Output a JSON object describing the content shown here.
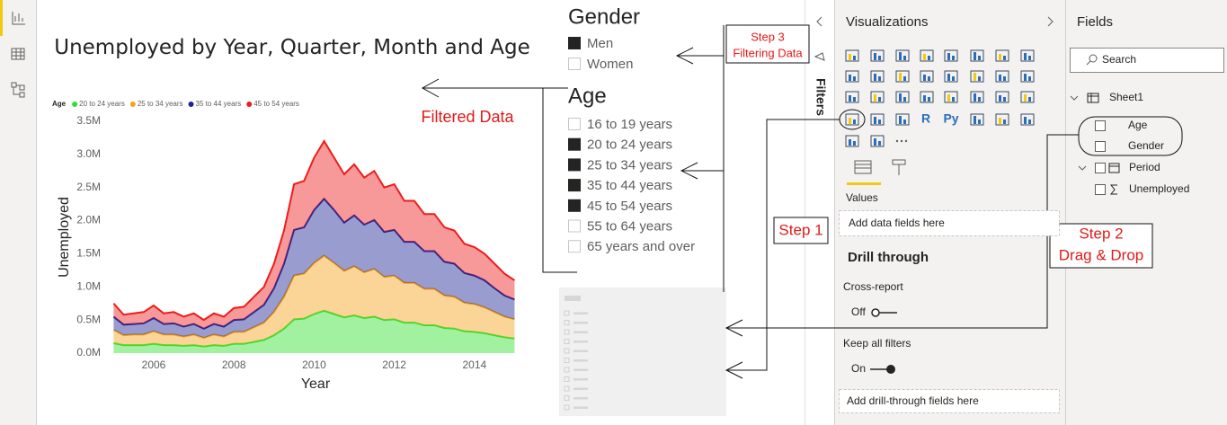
{
  "chart_data": {
    "type": "area",
    "stacked": true,
    "title": "Unemployed by Year, Quarter, Month and Age",
    "legend_title": "Age",
    "x_label": "Year",
    "y_label": "Unemployed",
    "x": [
      2005,
      2005.25,
      2005.5,
      2005.75,
      2006,
      2006.25,
      2006.5,
      2006.75,
      2007,
      2007.25,
      2007.5,
      2007.75,
      2008,
      2008.25,
      2008.5,
      2008.75,
      2009,
      2009.25,
      2009.5,
      2009.75,
      2010,
      2010.25,
      2010.5,
      2010.75,
      2011,
      2011.25,
      2011.5,
      2011.75,
      2012,
      2012.25,
      2012.5,
      2012.75,
      2013,
      2013.25,
      2013.5,
      2013.75,
      2014,
      2014.25,
      2014.5,
      2014.75,
      2015
    ],
    "series": [
      {
        "name": "20 to 24 years",
        "color": "#2ee02e",
        "values": [
          150000,
          120000,
          120000,
          120000,
          140000,
          120000,
          120000,
          110000,
          120000,
          100000,
          120000,
          110000,
          140000,
          140000,
          170000,
          200000,
          270000,
          370000,
          510000,
          520000,
          590000,
          640000,
          590000,
          540000,
          570000,
          530000,
          550000,
          500000,
          510000,
          460000,
          460000,
          420000,
          420000,
          380000,
          370000,
          330000,
          320000,
          300000,
          270000,
          240000,
          220000
        ]
      },
      {
        "name": "25 to 34 years",
        "color": "#f7a21b",
        "values": [
          200000,
          150000,
          160000,
          160000,
          190000,
          160000,
          160000,
          140000,
          160000,
          130000,
          160000,
          140000,
          180000,
          180000,
          220000,
          260000,
          350000,
          480000,
          660000,
          680000,
          770000,
          830000,
          770000,
          700000,
          740000,
          690000,
          720000,
          650000,
          660000,
          600000,
          600000,
          550000,
          550000,
          490000,
          480000,
          430000,
          420000,
          390000,
          350000,
          310000,
          290000
        ]
      },
      {
        "name": "35 to 44 years",
        "color": "#1b2494",
        "values": [
          200000,
          160000,
          160000,
          170000,
          200000,
          160000,
          170000,
          150000,
          160000,
          140000,
          160000,
          150000,
          180000,
          190000,
          230000,
          270000,
          360000,
          500000,
          690000,
          700000,
          800000,
          860000,
          800000,
          730000,
          770000,
          720000,
          740000,
          680000,
          690000,
          620000,
          620000,
          570000,
          570000,
          510000,
          500000,
          450000,
          430000,
          410000,
          360000,
          320000,
          300000
        ]
      },
      {
        "name": "45 to 54 years",
        "color": "#ee1c1c",
        "values": [
          200000,
          150000,
          160000,
          170000,
          190000,
          160000,
          170000,
          150000,
          160000,
          130000,
          160000,
          150000,
          180000,
          190000,
          230000,
          270000,
          370000,
          500000,
          690000,
          700000,
          790000,
          870000,
          790000,
          730000,
          770000,
          710000,
          740000,
          670000,
          690000,
          620000,
          620000,
          560000,
          560000,
          520000,
          500000,
          440000,
          430000,
          400000,
          370000,
          330000,
          290000
        ]
      }
    ],
    "xlim": [
      2005,
      2015.1
    ],
    "xticks": [
      2006,
      2008,
      2010,
      2012,
      2014
    ],
    "ylim": [
      0,
      3500000
    ],
    "yticks": [
      {
        "value": 0,
        "label": "0.0M"
      },
      {
        "value": 500000,
        "label": "0.5M"
      },
      {
        "value": 1000000,
        "label": "1.0M"
      },
      {
        "value": 1500000,
        "label": "1.5M"
      },
      {
        "value": 2000000,
        "label": "2.0M"
      },
      {
        "value": 2500000,
        "label": "2.5M"
      },
      {
        "value": 3000000,
        "label": "3.0M"
      },
      {
        "value": 3500000,
        "label": "3.5M"
      }
    ]
  },
  "slicers": {
    "gender": {
      "title": "Gender",
      "items": [
        {
          "label": "Men",
          "checked": true
        },
        {
          "label": "Women",
          "checked": false
        }
      ]
    },
    "age": {
      "title": "Age",
      "items": [
        {
          "label": "16 to 19 years",
          "checked": false
        },
        {
          "label": "20 to 24 years",
          "checked": true
        },
        {
          "label": "25 to 34 years",
          "checked": true
        },
        {
          "label": "35 to 44 years",
          "checked": true
        },
        {
          "label": "45 to 54 years",
          "checked": true
        },
        {
          "label": "55 to 64 years",
          "checked": false
        },
        {
          "label": "65 years and over",
          "checked": false
        }
      ]
    }
  },
  "annotations": {
    "step3": "Step 3",
    "step3_text": "Filtering Data",
    "filtered": "Filtered Data",
    "step1": "Step 1",
    "step2": "Step 2",
    "step2_text": "Drag & Drop"
  },
  "filters_pane": {
    "title": "Filters"
  },
  "visualizations": {
    "title": "Visualizations",
    "icon_texts": [
      "R",
      "Py"
    ],
    "values_label": "Values",
    "values_placeholder": "Add data fields here",
    "drill_through": "Drill through",
    "cross_report": "Cross-report",
    "cross_report_state": "Off",
    "keep_all_filters": "Keep all filters",
    "keep_all_filters_state": "On",
    "drill_placeholder": "Add drill-through fields here"
  },
  "fields": {
    "title": "Fields",
    "search": "Search",
    "table": "Sheet1",
    "items": [
      "Age",
      "Gender",
      "Period",
      "Unemployed"
    ]
  }
}
